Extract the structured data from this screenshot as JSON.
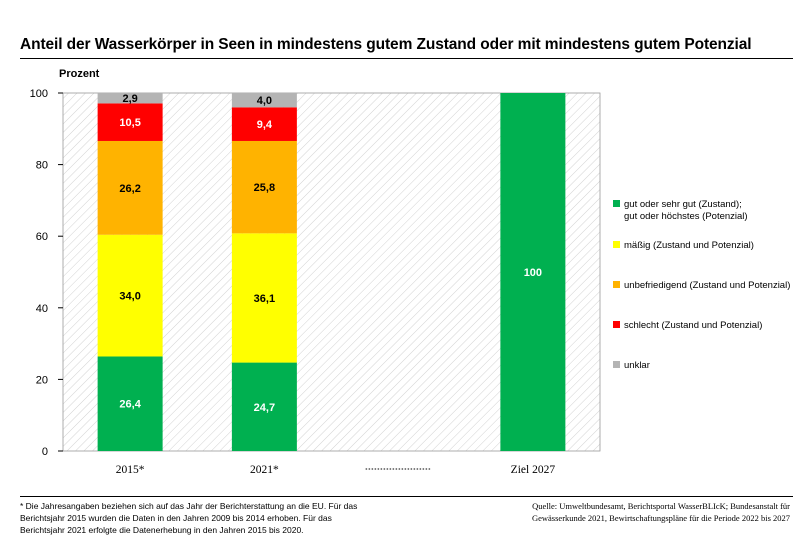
{
  "page": {
    "title": "Anteil der Wasserkörper in Seen in mindestens gutem Zustand oder mit mindestens gutem Potenzial",
    "footnote": "* Die Jahresangaben beziehen sich auf das Jahr der Berichterstattung an die EU. Für das Berichtsjahr 2015 wurden die Daten in den Jahren 2009 bis 2014 erhoben. Für das Berichtsjahr 2021 erfolgte die Datenerhebung in den Jahren 2015 bis 2020.",
    "source": "Quelle: Umweltbundesamt, Berichtsportal WasserBLIcK; Bundesanstalt für Gewässerkunde 2021, Bewirtschaftungspläne für die Periode 2022 bis 2027"
  },
  "chart_data": {
    "type": "bar",
    "stacked": true,
    "title": "Anteil der Wasserkörper in Seen in mindestens gutem Zustand oder mit mindestens gutem Potenzial",
    "ylabel": "Prozent",
    "xlabel": "",
    "ylim": [
      0,
      100
    ],
    "yticks": [
      0,
      20,
      40,
      60,
      80,
      100
    ],
    "categories": [
      "2015*",
      "2021*",
      "",
      "Ziel 2027"
    ],
    "separator_category": 2,
    "series": [
      {
        "name": "gut oder sehr gut (Zustand); gut oder höchstes (Potenzial)",
        "color": "#00b050",
        "values": [
          26.4,
          24.7,
          null,
          100
        ],
        "labels": [
          "26,4",
          "24,7",
          "",
          "100"
        ],
        "label_color": "#ffffff"
      },
      {
        "name": "mäßig (Zustand und Potenzial)",
        "color": "#ffff00",
        "values": [
          34.0,
          36.1,
          null,
          null
        ],
        "labels": [
          "34,0",
          "36,1",
          "",
          ""
        ],
        "label_color": "#000000"
      },
      {
        "name": "unbefriedigend (Zustand und Potenzial)",
        "color": "#ffb300",
        "values": [
          26.2,
          25.8,
          null,
          null
        ],
        "labels": [
          "26,2",
          "25,8",
          "",
          ""
        ],
        "label_color": "#000000"
      },
      {
        "name": "schlecht (Zustand und Potenzial)",
        "color": "#ff0000",
        "values": [
          10.5,
          9.4,
          null,
          null
        ],
        "labels": [
          "10,5",
          "9,4",
          "",
          ""
        ],
        "label_color": "#ffffff"
      },
      {
        "name": "unklar",
        "color": "#b4b4b4",
        "values": [
          2.9,
          4.0,
          null,
          null
        ],
        "labels": [
          "2,9",
          "4,0",
          "",
          ""
        ],
        "label_color": "#000000"
      }
    ],
    "legend": [
      {
        "lines": [
          "gut oder sehr gut (Zustand);",
          "gut oder höchstes (Potenzial)"
        ],
        "color": "#00b050"
      },
      {
        "lines": [
          "mäßig (Zustand und Potenzial)"
        ],
        "color": "#ffff00"
      },
      {
        "lines": [
          "unbefriedigend (Zustand und Potenzial)"
        ],
        "color": "#ffb300"
      },
      {
        "lines": [
          "schlecht (Zustand und Potenzial)"
        ],
        "color": "#ff0000"
      },
      {
        "lines": [
          "unklar"
        ],
        "color": "#b4b4b4"
      }
    ],
    "legend_position": "right",
    "grid": false,
    "background_pattern": "diagonal-hatch"
  }
}
